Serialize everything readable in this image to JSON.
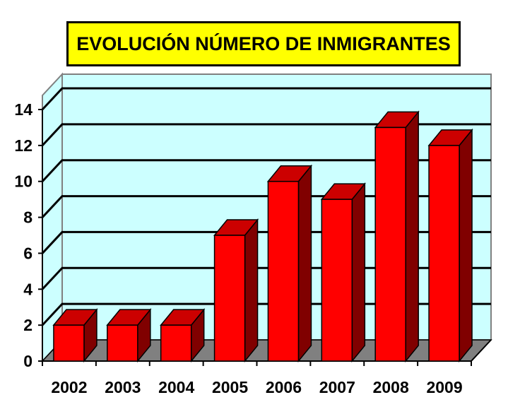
{
  "colors": {
    "title_bg": "#ffff00",
    "plot_bg": "#ccffff",
    "floor": "#808080",
    "bar_front": "#ff0000",
    "bar_top": "#cc0000",
    "bar_side": "#800000"
  },
  "chart_data": {
    "type": "bar",
    "title": "EVOLUCIÓN NÚMERO DE INMIGRANTES",
    "xlabel": "",
    "ylabel": "",
    "categories": [
      "2002",
      "2003",
      "2004",
      "2005",
      "2006",
      "2007",
      "2008",
      "2009"
    ],
    "values": [
      2,
      2,
      2,
      7,
      10,
      9,
      13,
      12
    ],
    "ylim": [
      0,
      14
    ],
    "yticks": [
      "0",
      "2",
      "4",
      "6",
      "8",
      "10",
      "12",
      "14"
    ],
    "grid": true,
    "legend": "none",
    "style": "3d"
  }
}
